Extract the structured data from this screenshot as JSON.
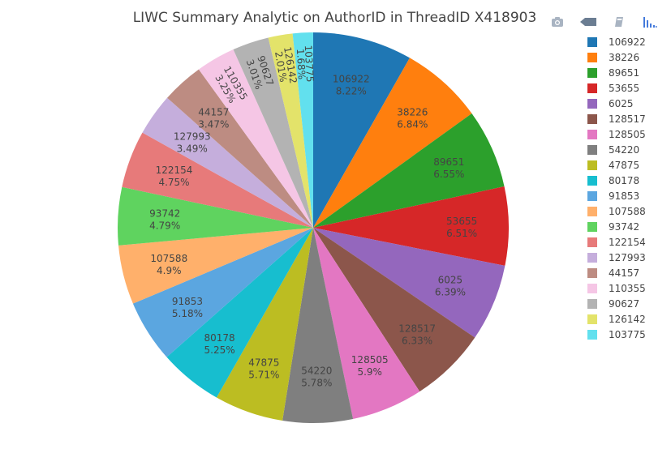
{
  "title": "LIWC Summary Analytic on AuthorID in ThreadID X418903",
  "toolbar": {
    "buttons": [
      {
        "name": "camera-icon",
        "label": "Download plot as a png"
      },
      {
        "name": "arrow-left-icon",
        "label": "Edit in Chart Studio"
      },
      {
        "name": "book-icon",
        "label": "Produced with Plotly"
      },
      {
        "name": "bar-chart-icon",
        "label": "Plotly logo"
      }
    ]
  },
  "chart_data": {
    "type": "pie",
    "legend_placement": "right",
    "sort": "descending",
    "direction": "clockwise",
    "slices": [
      {
        "label": "106922",
        "percent": 8.22,
        "percent_text": "8.22%",
        "color": "#1f77b4"
      },
      {
        "label": "38226",
        "percent": 6.84,
        "percent_text": "6.84%",
        "color": "#ff7f0e"
      },
      {
        "label": "89651",
        "percent": 6.55,
        "percent_text": "6.55%",
        "color": "#2ca02c"
      },
      {
        "label": "53655",
        "percent": 6.51,
        "percent_text": "6.51%",
        "color": "#d62728"
      },
      {
        "label": "6025",
        "percent": 6.39,
        "percent_text": "6.39%",
        "color": "#9467bd"
      },
      {
        "label": "128517",
        "percent": 6.33,
        "percent_text": "6.33%",
        "color": "#8c564b"
      },
      {
        "label": "128505",
        "percent": 5.9,
        "percent_text": "5.9%",
        "color": "#e377c2"
      },
      {
        "label": "54220",
        "percent": 5.78,
        "percent_text": "5.78%",
        "color": "#7f7f7f"
      },
      {
        "label": "47875",
        "percent": 5.71,
        "percent_text": "5.71%",
        "color": "#bcbd22"
      },
      {
        "label": "80178",
        "percent": 5.25,
        "percent_text": "5.25%",
        "color": "#17becf"
      },
      {
        "label": "91853",
        "percent": 5.18,
        "percent_text": "5.18%",
        "color": "#5ba6e0"
      },
      {
        "label": "107588",
        "percent": 4.9,
        "percent_text": "4.9%",
        "color": "#ffb06b"
      },
      {
        "label": "93742",
        "percent": 4.79,
        "percent_text": "4.79%",
        "color": "#5fd35f"
      },
      {
        "label": "122154",
        "percent": 4.75,
        "percent_text": "4.75%",
        "color": "#e77a7a"
      },
      {
        "label": "127993",
        "percent": 3.49,
        "percent_text": "3.49%",
        "color": "#c5aedc"
      },
      {
        "label": "44157",
        "percent": 3.47,
        "percent_text": "3.47%",
        "color": "#bd8c82"
      },
      {
        "label": "110355",
        "percent": 3.25,
        "percent_text": "3.25%",
        "color": "#f5c6e5"
      },
      {
        "label": "90627",
        "percent": 3.01,
        "percent_text": "3.01%",
        "color": "#b3b3b3"
      },
      {
        "label": "126142",
        "percent": 2.01,
        "percent_text": "2.01%",
        "color": "#e3e36a"
      },
      {
        "label": "103775",
        "percent": 1.68,
        "percent_text": "1.68%",
        "color": "#62e0ee"
      }
    ]
  }
}
